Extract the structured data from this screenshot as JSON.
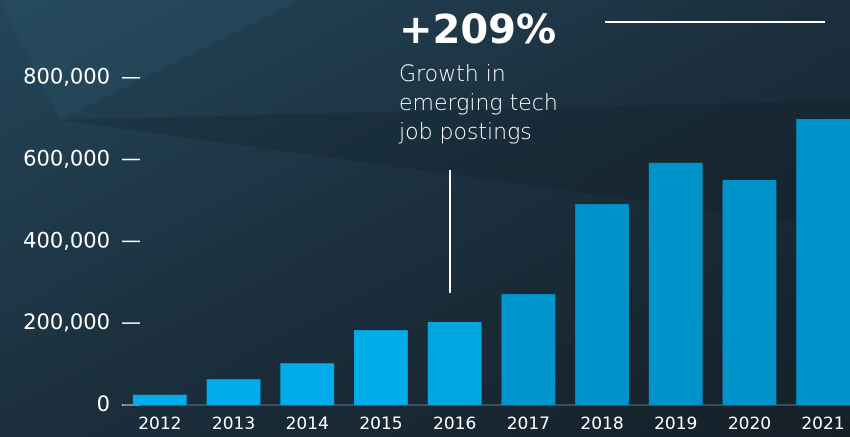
{
  "chart_data": {
    "type": "bar",
    "categories": [
      "2012",
      "2013",
      "2014",
      "2015",
      "2016",
      "2017",
      "2018",
      "2019",
      "2020",
      "2021"
    ],
    "values": [
      25000,
      63000,
      102000,
      183000,
      203000,
      271000,
      491000,
      592000,
      550000,
      699000
    ],
    "colors": [
      "#00acea",
      "#00acea",
      "#00acea",
      "#00acea",
      "#00a6e0",
      "#0095cc",
      "#0093c9",
      "#0093c9",
      "#0093c9",
      "#0093c9"
    ],
    "ylim": [
      0,
      990000
    ],
    "yticks": [
      0,
      {
        "value": 200000,
        "label": "200,000"
      },
      {
        "value": 400000,
        "label": "400,000"
      },
      {
        "value": 600000,
        "label": "600,000"
      },
      {
        "value": 800000,
        "label": "800,000"
      }
    ],
    "annotation": {
      "headline": "+209%",
      "lines": [
        "Growth in",
        "emerging tech",
        "job postings"
      ]
    }
  }
}
